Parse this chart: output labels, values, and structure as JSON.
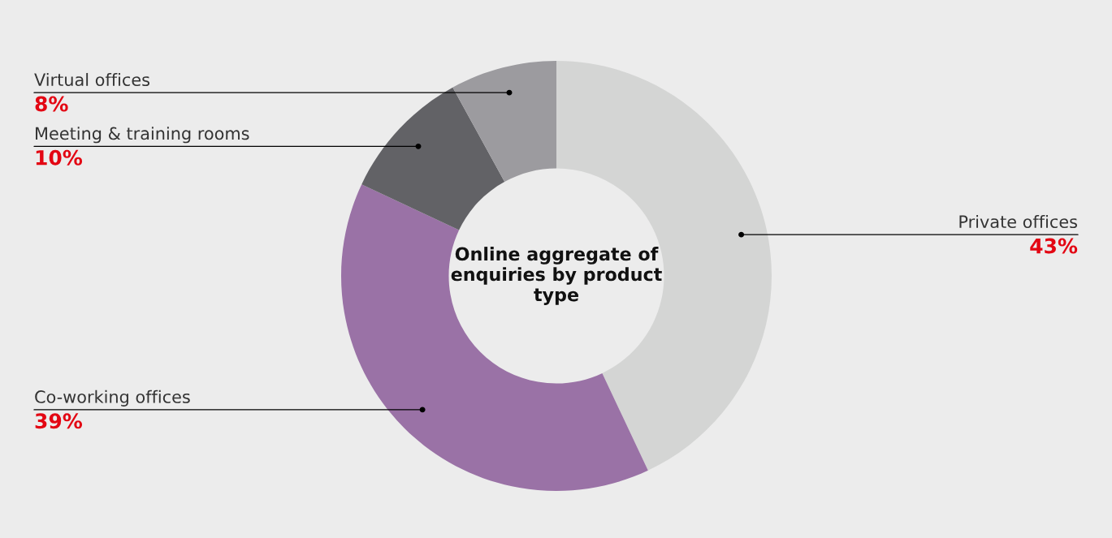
{
  "chart_data": {
    "type": "donut",
    "title": "Online aggregate of enquiries by product type",
    "categories": [
      "Private offices",
      "Co-working offices",
      "Meeting & training rooms",
      "Virtual offices"
    ],
    "values": [
      43,
      39,
      10,
      8
    ],
    "colors": [
      "#d4d5d4",
      "#9a72a6",
      "#626266",
      "#9c9b9f"
    ],
    "value_labels": [
      "43%",
      "39%",
      "10%",
      "8%"
    ],
    "legend": false
  }
}
